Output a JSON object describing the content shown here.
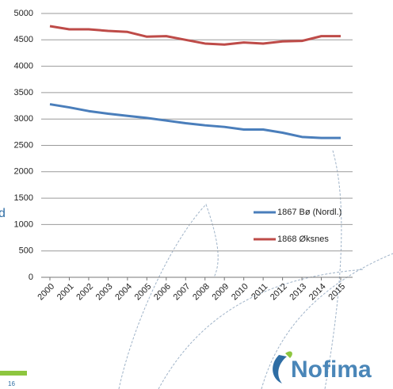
{
  "chart_data": {
    "type": "line",
    "categories": [
      "2000",
      "2001",
      "2002",
      "2003",
      "2004",
      "2005",
      "2006",
      "2007",
      "2008",
      "2009",
      "2010",
      "2011",
      "2012",
      "2013",
      "2014",
      "2015"
    ],
    "series": [
      {
        "name": "1867 Bø (Nordl.)",
        "color": "#4a7ebb",
        "values": [
          3280,
          3220,
          3150,
          3100,
          3060,
          3020,
          2970,
          2920,
          2880,
          2850,
          2800,
          2800,
          2740,
          2660,
          2640,
          2640
        ]
      },
      {
        "name": "1868 Øksnes",
        "color": "#be4b48",
        "values": [
          4760,
          4700,
          4700,
          4670,
          4650,
          4560,
          4570,
          4500,
          4430,
          4410,
          4450,
          4430,
          4470,
          4480,
          4570,
          4570
        ]
      }
    ],
    "ylim": [
      0,
      5000
    ],
    "yticks": [
      0,
      500,
      1000,
      1500,
      2000,
      2500,
      3000,
      3500,
      4000,
      4500,
      5000
    ],
    "grid": true
  },
  "slide": {
    "title_fragment": "d",
    "page_number": "16",
    "logo": "Nofima"
  }
}
